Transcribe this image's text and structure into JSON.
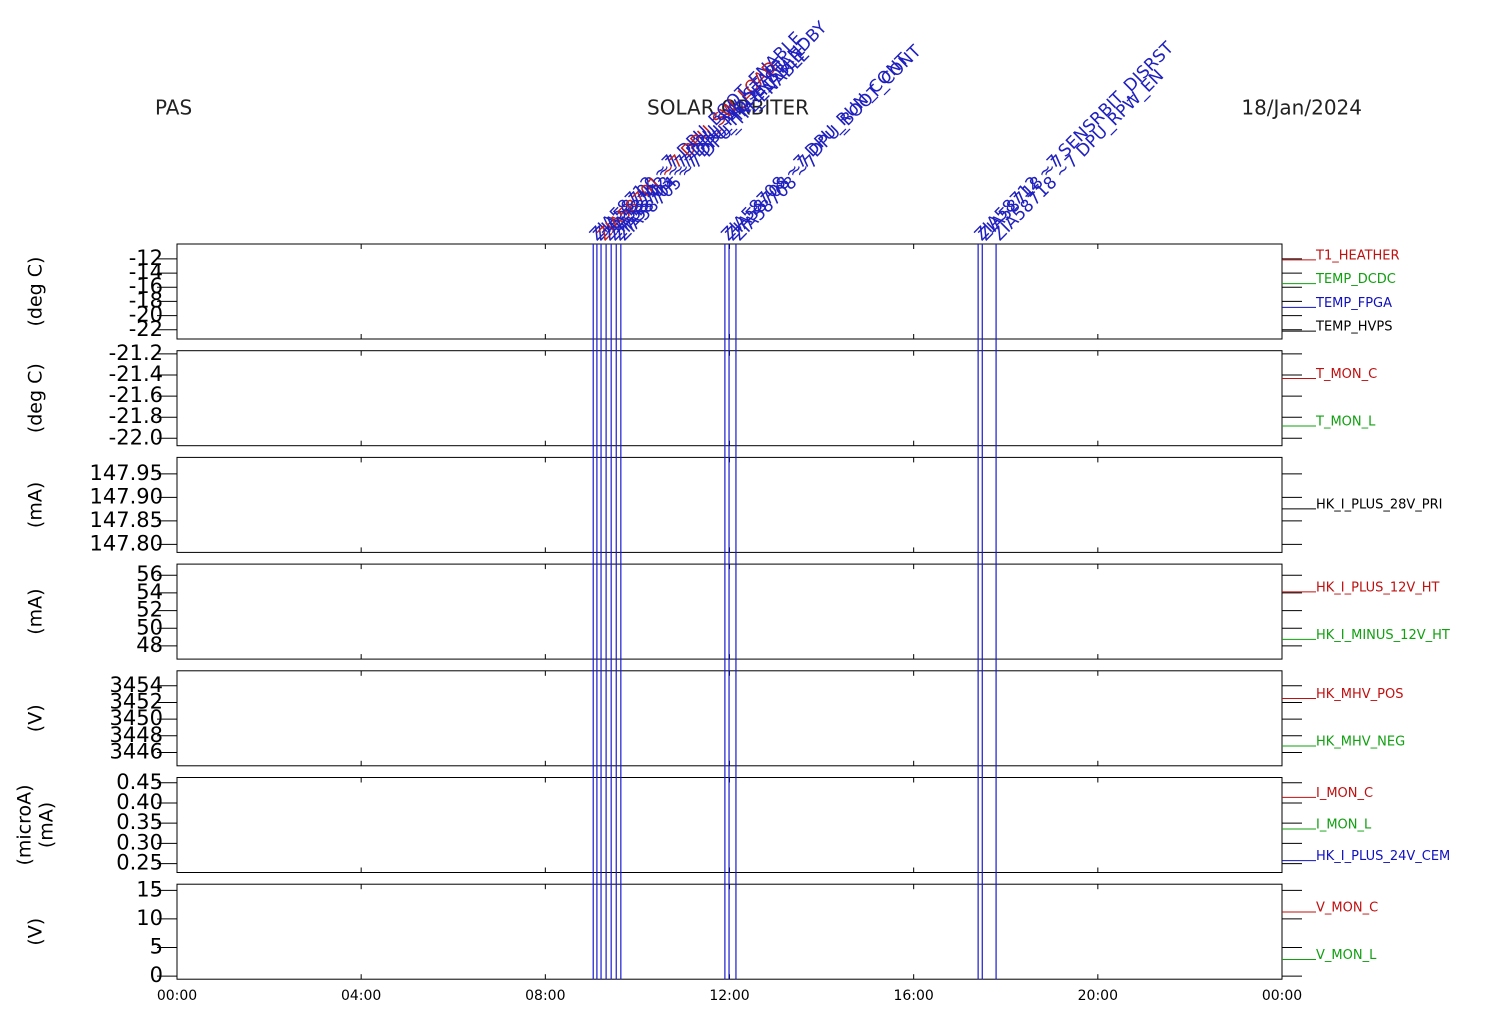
{
  "header": {
    "left": "PAS",
    "center": "SOLAR ORBITER",
    "right": "18/Jan/2024"
  },
  "xaxis": {
    "xlim": [
      0,
      24
    ],
    "xticks": [
      {
        "value": 0,
        "label": "00:00"
      },
      {
        "value": 4,
        "label": "04:00"
      },
      {
        "value": 8,
        "label": "08:00"
      },
      {
        "value": 12,
        "label": "12:00"
      },
      {
        "value": 16,
        "label": "16:00"
      },
      {
        "value": 20,
        "label": "20:00"
      },
      {
        "value": 24,
        "label": "00:00"
      }
    ]
  },
  "events": [
    {
      "x": 9.04,
      "label": "ZIA58712 ~7",
      "color": "#2020c0"
    },
    {
      "x": 9.12,
      "label": "ZIA58700 ~7 DPU_BOOT_ENABLE",
      "color": "#2020c0"
    },
    {
      "x": 9.21,
      "label": "ZIA58701 ~7 DPU_SW_LOAD",
      "color": "#c02020"
    },
    {
      "x": 9.32,
      "label": "ZIA58702 ~7 DPU_SW_START",
      "color": "#2020c0"
    },
    {
      "x": 9.43,
      "label": "ZIA58703 ~7 DPU_MODE_STANDBY",
      "color": "#2020c0"
    },
    {
      "x": 9.54,
      "label": "ZIA58704 ~7 DPU_HK_ENABLE",
      "color": "#2020c0"
    },
    {
      "x": 9.64,
      "label": "ZIA58705 ~7 DPU_TM_ENABLE",
      "color": "#2020c0"
    },
    {
      "x": 11.9,
      "label": "ZIA58708 ~7 DPU_RUN_CONT",
      "color": "#2020c0"
    },
    {
      "x": 11.99,
      "label": "ZIA58708 ~7 DPU_BOOT_CONT",
      "color": "#2020c0"
    },
    {
      "x": 12.14,
      "label": "ZIA58708 ~7",
      "color": "#2020c0"
    },
    {
      "x": 17.4,
      "label": "ZIA58712 ~7 SENSRBIT_DISRST",
      "color": "#2020c0"
    },
    {
      "x": 17.49,
      "label": "ZIA58718 ~7",
      "color": "#2020c0"
    },
    {
      "x": 17.79,
      "label": "ZIA58718 ~7 DPU_RPW_EN",
      "color": "#2020c0"
    }
  ],
  "chart_data": [
    {
      "type": "line",
      "ylabels": [
        "(deg C)"
      ],
      "ylim": [
        -23.3,
        -9.9
      ],
      "yticks": [
        -12,
        -14,
        -16,
        -18,
        -20,
        -22
      ],
      "series": [
        {
          "name": "T1_HEATHER",
          "color": "#c01010"
        },
        {
          "name": "TEMP_DCDC",
          "color": "#10a010"
        },
        {
          "name": "TEMP_FPGA",
          "color": "#1010c0"
        },
        {
          "name": "TEMP_HVPS",
          "color": "#000000"
        }
      ]
    },
    {
      "type": "line",
      "ylabels": [
        "(deg C)"
      ],
      "ylim": [
        -22.07,
        -21.17
      ],
      "yticks": [
        {
          "value": -21.2,
          "label": "-21.2"
        },
        {
          "value": -21.4,
          "label": "-21.4"
        },
        {
          "value": -21.6,
          "label": "-21.6"
        },
        {
          "value": -21.8,
          "label": "-21.8"
        },
        {
          "value": -22,
          "label": "-22.0"
        }
      ],
      "series": [
        {
          "name": "T_MON_C",
          "color": "#c01010"
        },
        {
          "name": "T_MON_L",
          "color": "#10a010"
        }
      ]
    },
    {
      "type": "line",
      "ylabels": [
        "(mA)"
      ],
      "ylim": [
        147.783,
        147.985
      ],
      "yticks": [
        147.95,
        {
          "value": 147.9,
          "label": "147.90"
        },
        147.85,
        {
          "value": 147.8,
          "label": "147.80"
        }
      ],
      "series": [
        {
          "name": "HK_I_PLUS_28V_PRI",
          "color": "#000000"
        }
      ]
    },
    {
      "type": "line",
      "ylabels": [
        "(mA)"
      ],
      "ylim": [
        46.51,
        57.26
      ],
      "yticks": [
        56,
        54,
        52,
        50,
        48
      ],
      "series": [
        {
          "name": "HK_I_PLUS_12V_HT",
          "color": "#c01010"
        },
        {
          "name": "HK_I_MINUS_12V_HT",
          "color": "#10a010"
        }
      ]
    },
    {
      "type": "line",
      "ylabels": [
        "(V)"
      ],
      "ylim": [
        3444.4,
        3455.8
      ],
      "yticks": [
        3454,
        3452,
        3450,
        3448,
        3446
      ],
      "series": [
        {
          "name": "HK_MHV_POS",
          "color": "#c01010"
        },
        {
          "name": "HK_MHV_NEG",
          "color": "#10a010"
        }
      ]
    },
    {
      "type": "line",
      "ylabels": [
        "(microA)",
        "(mA)"
      ],
      "ylim": [
        0.228,
        0.463
      ],
      "yticks": [
        0.45,
        {
          "value": 0.4,
          "label": "0.40"
        },
        0.35,
        {
          "value": 0.3,
          "label": "0.30"
        },
        0.25
      ],
      "series": [
        {
          "name": "I_MON_C",
          "color": "#c01010"
        },
        {
          "name": "I_MON_L",
          "color": "#10a010"
        },
        {
          "name": "HK_I_PLUS_24V_CEM",
          "color": "#1010c0"
        }
      ]
    },
    {
      "type": "line",
      "ylabels": [
        "(V)"
      ],
      "ylim": [
        -0.54,
        16.07
      ],
      "yticks": [
        15,
        10,
        5,
        0
      ],
      "series": [
        {
          "name": "V_MON_C",
          "color": "#c01010"
        },
        {
          "name": "V_MON_L",
          "color": "#10a010"
        }
      ]
    }
  ]
}
